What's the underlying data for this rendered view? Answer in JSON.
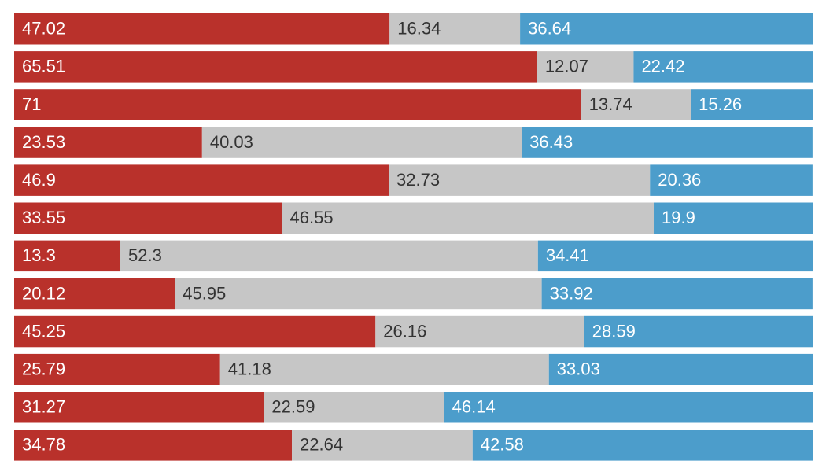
{
  "chart_data": {
    "type": "bar",
    "orientation": "horizontal",
    "stacked": "percent",
    "grid": false,
    "legend": "none",
    "xlim": [
      0,
      100
    ],
    "series": [
      {
        "values": [
          47.02,
          65.51,
          71,
          23.53,
          46.9,
          33.55,
          13.3,
          20.12,
          45.25,
          25.79,
          31.27,
          34.78
        ],
        "labels": [
          "47.02",
          "65.51",
          "71",
          "23.53",
          "46.9",
          "33.55",
          "13.3",
          "20.12",
          "45.25",
          "25.79",
          "31.27",
          "34.78"
        ],
        "color": "#b9312b",
        "label_color": "#ffffff"
      },
      {
        "values": [
          16.34,
          12.07,
          13.74,
          40.03,
          32.73,
          46.55,
          52.3,
          45.95,
          26.16,
          41.18,
          22.59,
          22.64
        ],
        "labels": [
          "16.34",
          "12.07",
          "13.74",
          "40.03",
          "32.73",
          "46.55",
          "52.3",
          "45.95",
          "26.16",
          "41.18",
          "22.59",
          "22.64"
        ],
        "color": "#c6c6c6",
        "label_color": "#333333"
      },
      {
        "values": [
          36.64,
          22.42,
          15.26,
          36.43,
          20.36,
          19.9,
          34.41,
          33.92,
          28.59,
          33.03,
          46.14,
          42.58
        ],
        "labels": [
          "36.64",
          "22.42",
          "15.26",
          "36.43",
          "20.36",
          "19.9",
          "34.41",
          "33.92",
          "28.59",
          "33.03",
          "46.14",
          "42.58"
        ],
        "color": "#4c9dcb",
        "label_color": "#ffffff"
      }
    ]
  }
}
